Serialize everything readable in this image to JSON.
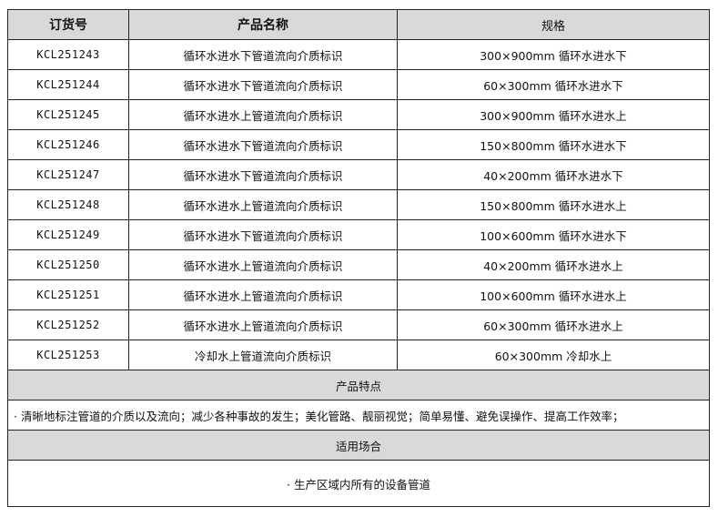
{
  "header": {
    "col1": "订货号",
    "col2": "产品名称",
    "col3": "规格"
  },
  "rows": [
    {
      "code": "KCL251243",
      "name": "循环水进水下管道流向介质标识",
      "spec": "300×900mm 循环水进水下"
    },
    {
      "code": "KCL251244",
      "name": "循环水进水下管道流向介质标识",
      "spec": "60×300mm 循环水进水下"
    },
    {
      "code": "KCL251245",
      "name": "循环水进水上管道流向介质标识",
      "spec": "300×900mm 循环水进水上"
    },
    {
      "code": "KCL251246",
      "name": "循环水进水下管道流向介质标识",
      "spec": "150×800mm 循环水进水下"
    },
    {
      "code": "KCL251247",
      "name": "循环水进水下管道流向介质标识",
      "spec": "40×200mm 循环水进水下"
    },
    {
      "code": "KCL251248",
      "name": "循环水进水上管道流向介质标识",
      "spec": "150×800mm 循环水进水上"
    },
    {
      "code": "KCL251249",
      "name": "循环水进水下管道流向介质标识",
      "spec": "100×600mm 循环水进水下"
    },
    {
      "code": "KCL251250",
      "name": "循环水进水上管道流向介质标识",
      "spec": "40×200mm 循环水进水上"
    },
    {
      "code": "KCL251251",
      "name": "循环水进水上管道流向介质标识",
      "spec": "100×600mm 循环水进水上"
    },
    {
      "code": "KCL251252",
      "name": "循环水进水上管道流向介质标识",
      "spec": "60×300mm 循环水进水上"
    },
    {
      "code": "KCL251253",
      "name": "冷却水上管道流向介质标识",
      "spec": "60×300mm 冷却水上"
    }
  ],
  "features": {
    "title": "产品特点",
    "text": "· 清晰地标注管道的介质以及流向；减少各种事故的发生；美化管路、靓丽视觉；简单易懂、避免误操作、提高工作效率；"
  },
  "applications": {
    "title": "适用场合",
    "text": "· 生产区域内所有的设备管道"
  }
}
